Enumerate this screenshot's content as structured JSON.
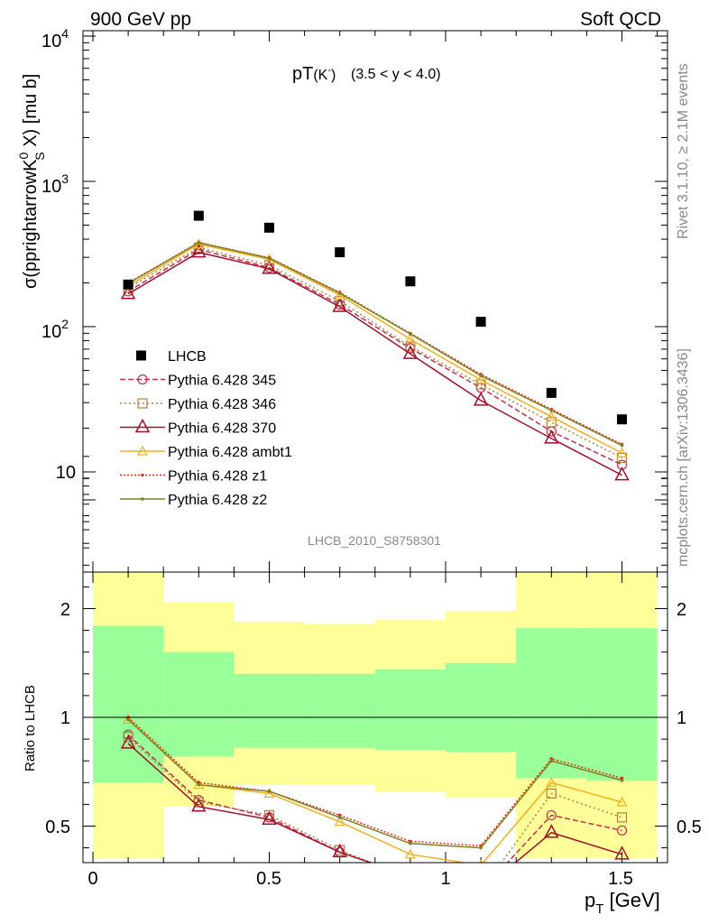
{
  "header": {
    "left": "900 GeV pp",
    "right": "Soft QCD"
  },
  "side_labels": {
    "upper": "Rivet 3.1.10, ≥ 2.1M events",
    "lower": "mcplots.cern.ch [arXiv:1306.3436]"
  },
  "plot": {
    "title_main": "pT",
    "title_particle": "(K",
    "title_particle_sup": "-",
    "title_particle_close": ")",
    "title_range": "(3.5 < y < 4.0)",
    "analysis_id": "LHCB_2010_S8758301",
    "y_label_prefix": "σ(pprightarrowK",
    "y_label_sup": "0",
    "y_label_sub": "S",
    "y_label_suffix": " X) [mu b]",
    "ratio_label": "Ratio to LHCB",
    "x_label_main": "p",
    "x_label_sub": "T",
    "x_label_unit": " [GeV]",
    "tick_1e4_base": "10",
    "tick_1e4_exp": "4",
    "tick_1e3_base": "10",
    "tick_1e3_exp": "3",
    "tick_1e2_base": "10",
    "tick_1e2_exp": "2",
    "tick_10": "10",
    "ratio_tick_2": "2",
    "ratio_tick_1": "1",
    "ratio_tick_05": "0.5",
    "ratio_tick_2_r": "2",
    "ratio_tick_1_r": "1",
    "ratio_tick_05_r": "0.5",
    "x_tick_0": "0",
    "x_tick_05": "0.5",
    "x_tick_1": "1",
    "x_tick_15": "1.5"
  },
  "chart_data": {
    "type": "scatter",
    "x_range": [
      -0.05,
      1.65
    ],
    "main_y_log": true,
    "main_ylim": [
      2.5,
      12000
    ],
    "ratio_ylim": [
      0.35,
      2.25
    ],
    "bins": [
      [
        0.0,
        0.2
      ],
      [
        0.2,
        0.4
      ],
      [
        0.4,
        0.6
      ],
      [
        0.6,
        0.8
      ],
      [
        0.8,
        1.0
      ],
      [
        1.0,
        1.2
      ],
      [
        1.2,
        1.4
      ],
      [
        1.4,
        1.6
      ]
    ],
    "x": [
      0.1,
      0.3,
      0.5,
      0.7,
      0.9,
      1.1,
      1.3,
      1.5
    ],
    "data": {
      "name": "LHCB",
      "values": [
        195,
        580,
        480,
        325,
        205,
        108,
        35,
        23
      ],
      "band_inner": [
        [
          0.7,
          1.42
        ],
        [
          0.82,
          1.3
        ],
        [
          0.86,
          1.2
        ],
        [
          0.86,
          1.2
        ],
        [
          0.85,
          1.22
        ],
        [
          0.84,
          1.25
        ],
        [
          0.72,
          1.41
        ],
        [
          0.71,
          1.41
        ]
      ],
      "band_outer": [
        [
          0.35,
          1.76
        ],
        [
          0.59,
          1.53
        ],
        [
          0.69,
          1.44
        ],
        [
          0.69,
          1.43
        ],
        [
          0.66,
          1.45
        ],
        [
          0.63,
          1.49
        ],
        [
          0.35,
          1.71
        ],
        [
          0.35,
          1.71
        ]
      ]
    },
    "series": [
      {
        "name": "Pythia 6.428 345",
        "color": "#c0304a",
        "dash": "6,3",
        "marker": "circle",
        "values": [
          175,
          340,
          255,
          142,
          71,
          38,
          19,
          11.2
        ],
        "ratio": [
          0.92,
          0.62,
          0.54,
          0.38,
          0.27,
          0.2,
          0.55,
          0.48
        ]
      },
      {
        "name": "Pythia 6.428 346",
        "color": "#b08040",
        "dash": "2,3",
        "marker": "square",
        "values": [
          185,
          350,
          265,
          150,
          73,
          40,
          22,
          12.5
        ],
        "ratio": [
          0.91,
          0.61,
          0.55,
          0.39,
          0.26,
          0.2,
          0.65,
          0.54
        ]
      },
      {
        "name": "Pythia 6.428 370",
        "color": "#a0102a",
        "dash": "",
        "marker": "triangle",
        "values": [
          168,
          325,
          250,
          137,
          65,
          31,
          17,
          9.5
        ],
        "ratio": [
          0.88,
          0.59,
          0.53,
          0.38,
          0.27,
          0.2,
          0.47,
          0.37
        ]
      },
      {
        "name": "Pythia 6.428 ambt1",
        "color": "#f0b020",
        "dash": "",
        "marker": "triangle-small",
        "values": [
          190,
          370,
          290,
          165,
          82,
          43,
          24,
          13.5
        ],
        "ratio": [
          0.99,
          0.69,
          0.65,
          0.52,
          0.37,
          0.32,
          0.7,
          0.61
        ]
      },
      {
        "name": "Pythia 6.428 z1",
        "color": "#e03020",
        "dash": "2,2",
        "marker": "dot",
        "values": [
          200,
          380,
          298,
          172,
          90,
          47,
          27,
          15.5
        ],
        "ratio": [
          1.0,
          0.7,
          0.66,
          0.55,
          0.43,
          0.41,
          0.81,
          0.72
        ]
      },
      {
        "name": "Pythia 6.428 z2",
        "color": "#808020",
        "dash": "",
        "marker": "dot",
        "values": [
          198,
          378,
          296,
          170,
          89,
          46,
          26.5,
          15.2
        ],
        "ratio": [
          0.99,
          0.69,
          0.66,
          0.54,
          0.42,
          0.4,
          0.8,
          0.71
        ]
      }
    ]
  }
}
